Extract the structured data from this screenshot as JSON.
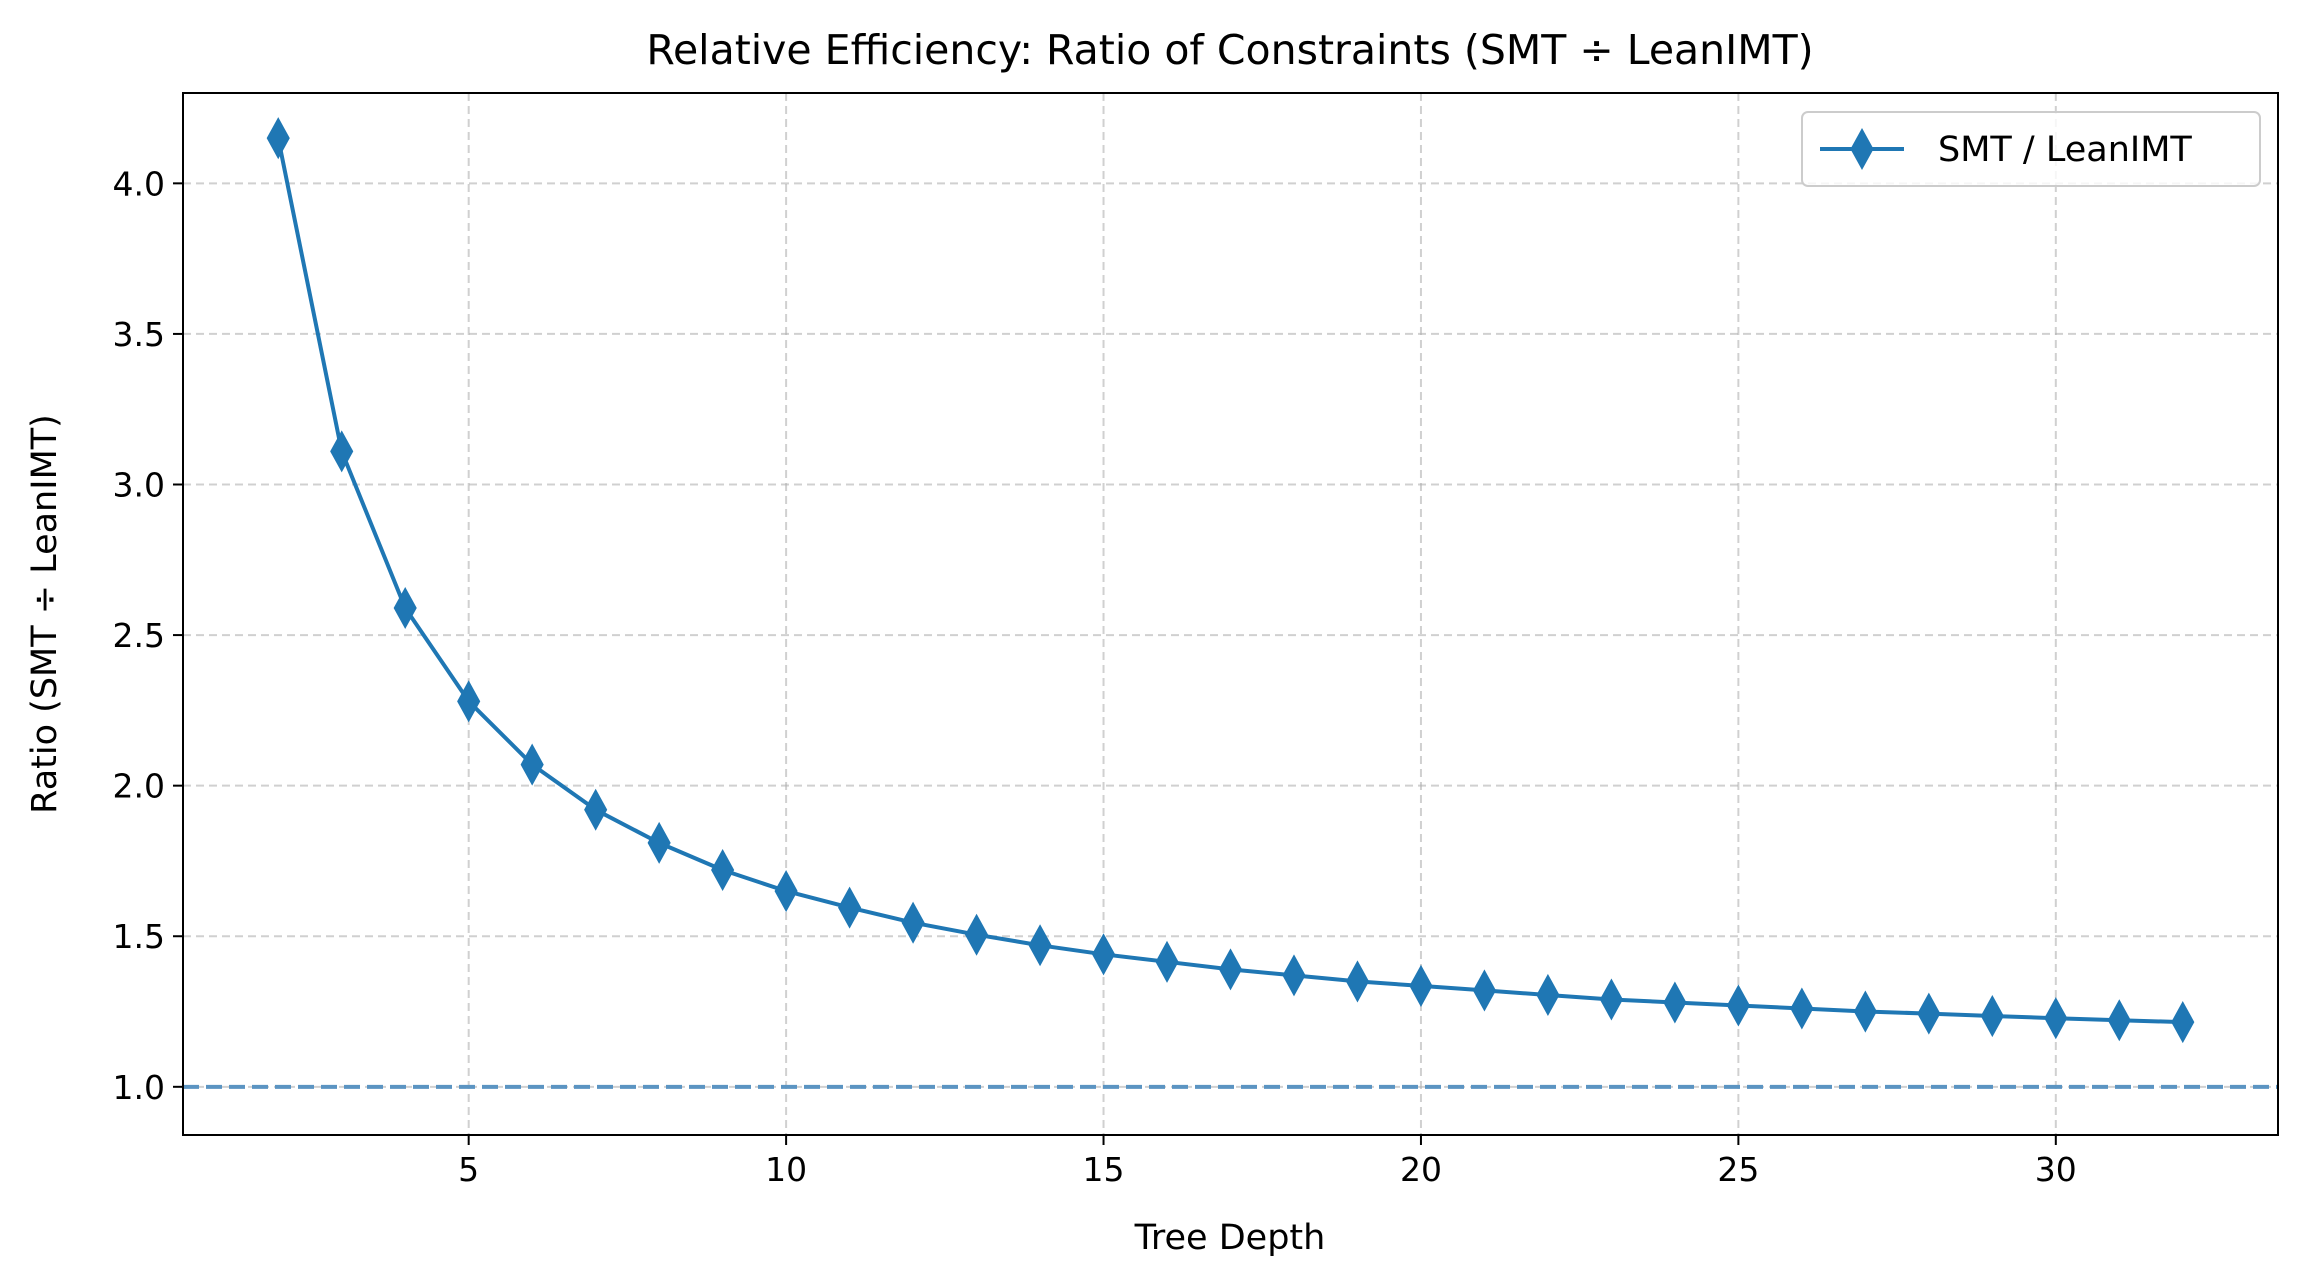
{
  "chart_data": {
    "type": "line",
    "title": "Relative Efficiency: Ratio of Constraints (SMT ÷ LeanIMT)",
    "xlabel": "Tree Depth",
    "ylabel": "Ratio (SMT ÷ LeanIMT)",
    "xlim": [
      0.5,
      33.5
    ],
    "ylim": [
      0.84,
      4.3
    ],
    "xticks": [
      5,
      10,
      15,
      20,
      25,
      30
    ],
    "xtick_labels": [
      "5",
      "10",
      "15",
      "20",
      "25",
      "30"
    ],
    "yticks": [
      1.0,
      1.5,
      2.0,
      2.5,
      3.0,
      3.5,
      4.0
    ],
    "ytick_labels": [
      "1.0",
      "1.5",
      "2.0",
      "2.5",
      "3.0",
      "3.5",
      "4.0"
    ],
    "grid": true,
    "legend_position": "top-right",
    "x": [
      2,
      3,
      4,
      5,
      6,
      7,
      8,
      9,
      10,
      11,
      12,
      13,
      14,
      15,
      16,
      17,
      18,
      19,
      20,
      21,
      22,
      23,
      24,
      25,
      26,
      27,
      28,
      29,
      30,
      31,
      32
    ],
    "series": [
      {
        "name": "SMT / LeanIMT",
        "color": "#1f77b4",
        "marker": "thin-diamond",
        "values": [
          4.15,
          3.11,
          2.59,
          2.28,
          2.07,
          1.92,
          1.81,
          1.72,
          1.65,
          1.595,
          1.545,
          1.505,
          1.47,
          1.44,
          1.415,
          1.39,
          1.37,
          1.35,
          1.335,
          1.32,
          1.305,
          1.29,
          1.28,
          1.27,
          1.26,
          1.25,
          1.243,
          1.235,
          1.228,
          1.221,
          1.215
        ]
      }
    ],
    "reference_line": {
      "y": 1.0,
      "style": "dashed",
      "color": "#5b94c2"
    }
  }
}
